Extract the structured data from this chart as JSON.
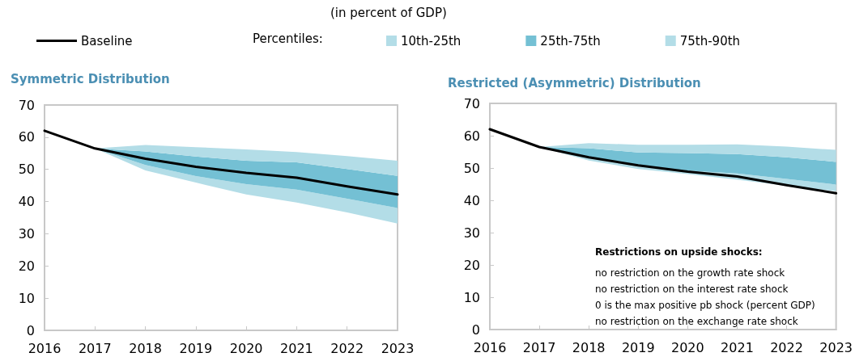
{
  "chart_data": [
    {
      "type": "area",
      "title": "Symmetric Distribution",
      "subtitle": "(in percent of GDP)",
      "legend_title": "Percentiles:",
      "categories": [
        "2016",
        "2017",
        "2018",
        "2019",
        "2020",
        "2021",
        "2022",
        "2023"
      ],
      "series": [
        {
          "name": "10th-25th",
          "color": "#b3dde7",
          "values": [
            null,
            null,
            null,
            null,
            null,
            null,
            null,
            null
          ],
          "lower": [
            null,
            56.5,
            49.7,
            45.9,
            42.2,
            39.7,
            36.6,
            33.2
          ],
          "upper": [
            null,
            56.5,
            51.4,
            47.9,
            45.4,
            43.7,
            40.9,
            38.0
          ]
        },
        {
          "name": "25th-75th",
          "color": "#74c0d4",
          "values": [
            null,
            null,
            null,
            null,
            null,
            null,
            null,
            null
          ],
          "lower": [
            null,
            56.5,
            51.4,
            47.9,
            45.4,
            43.7,
            40.9,
            38.0
          ],
          "upper": [
            null,
            56.5,
            55.6,
            54.0,
            52.7,
            52.2,
            50.1,
            48.0
          ]
        },
        {
          "name": "75th-90th",
          "color": "#b3dde7",
          "values": [
            null,
            null,
            null,
            null,
            null,
            null,
            null,
            null
          ],
          "lower": [
            null,
            56.5,
            55.6,
            54.0,
            52.7,
            52.2,
            50.1,
            48.0
          ],
          "upper": [
            null,
            56.5,
            57.6,
            56.9,
            56.2,
            55.4,
            54.1,
            52.7
          ]
        },
        {
          "name": "Baseline",
          "type": "line",
          "color": "#000000",
          "values": [
            62.0,
            56.5,
            53.3,
            50.8,
            48.9,
            47.4,
            44.7,
            42.2
          ]
        }
      ],
      "ylim": [
        0,
        70
      ],
      "yticks": [
        0,
        10,
        20,
        30,
        40,
        50,
        60,
        70
      ],
      "grid": false,
      "legend": "top",
      "marker": "none",
      "line_style": "solid"
    },
    {
      "type": "area",
      "title": "Restricted (Asymmetric) Distribution",
      "categories": [
        "2016",
        "2017",
        "2018",
        "2019",
        "2020",
        "2021",
        "2022",
        "2023"
      ],
      "series": [
        {
          "color": "#b3dde7",
          "values": [
            null,
            null,
            null,
            null,
            null,
            null,
            null,
            null
          ],
          "lower": [
            null,
            56.5,
            52.3,
            49.7,
            48.1,
            46.4,
            44.5,
            42.8
          ],
          "upper": [
            null,
            56.5,
            53.3,
            50.8,
            49.2,
            48.3,
            46.6,
            44.9
          ]
        },
        {
          "color": "#74c0d4",
          "values": [
            null,
            null,
            null,
            null,
            null,
            null,
            null,
            null
          ],
          "lower": [
            null,
            56.5,
            53.3,
            50.8,
            49.2,
            48.3,
            46.6,
            44.9
          ],
          "upper": [
            null,
            56.5,
            56.1,
            54.8,
            54.6,
            54.3,
            53.3,
            51.9
          ]
        },
        {
          "color": "#b3dde7",
          "values": [
            null,
            null,
            null,
            null,
            null,
            null,
            null,
            null
          ],
          "lower": [
            null,
            56.5,
            56.1,
            54.8,
            54.6,
            54.3,
            53.3,
            51.9
          ],
          "upper": [
            null,
            56.5,
            57.7,
            57.2,
            57.2,
            57.3,
            56.6,
            55.6
          ]
        },
        {
          "type": "line",
          "color": "#000000",
          "values": [
            62.0,
            56.5,
            53.3,
            50.8,
            48.9,
            47.4,
            44.7,
            42.2
          ]
        }
      ],
      "ylim": [
        0,
        70
      ],
      "yticks": [
        0,
        10,
        20,
        30,
        40,
        50,
        60,
        70
      ],
      "grid": false,
      "marker": "none",
      "line_style": "solid",
      "annotations": [
        "Restrictions on upside shocks:",
        "no restriction on the growth rate shock",
        "no restriction on the interest rate shock",
        "0 is the max positive pb shock (percent GDP)",
        "no restriction on the exchange rate shock"
      ]
    }
  ]
}
